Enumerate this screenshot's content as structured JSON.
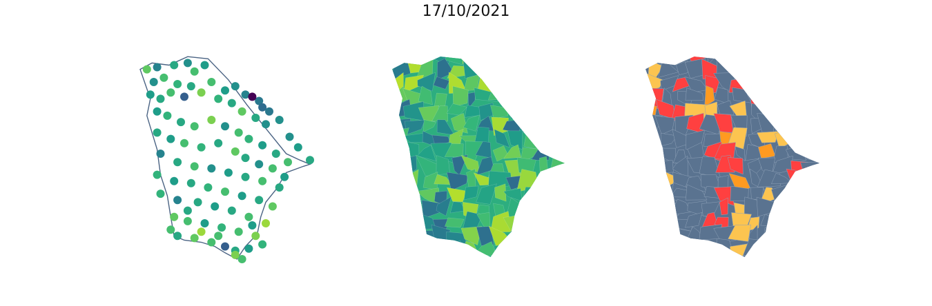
{
  "figure": {
    "title": "17/10/2021"
  },
  "chart_data": [
    {
      "type": "scatter",
      "panel": "stations-map",
      "title": "",
      "xlabel": "",
      "ylabel": "",
      "grid": false,
      "axes_visible": false,
      "colormap": "viridis",
      "outline_color": "#4a6383",
      "state_outline": [
        [
          0.0,
          0.9
        ],
        [
          0.07,
          0.93
        ],
        [
          0.17,
          0.92
        ],
        [
          0.28,
          0.96
        ],
        [
          0.4,
          0.95
        ],
        [
          0.52,
          0.85
        ],
        [
          0.63,
          0.73
        ],
        [
          0.74,
          0.62
        ],
        [
          0.86,
          0.5
        ],
        [
          0.94,
          0.47
        ],
        [
          1.0,
          0.45
        ],
        [
          0.96,
          0.44
        ],
        [
          0.86,
          0.41
        ],
        [
          0.8,
          0.33
        ],
        [
          0.74,
          0.27
        ],
        [
          0.71,
          0.2
        ],
        [
          0.69,
          0.12
        ],
        [
          0.62,
          0.06
        ],
        [
          0.57,
          0.0
        ],
        [
          0.5,
          0.03
        ],
        [
          0.44,
          0.06
        ],
        [
          0.36,
          0.08
        ],
        [
          0.26,
          0.09
        ],
        [
          0.2,
          0.11
        ],
        [
          0.18,
          0.2
        ],
        [
          0.16,
          0.3
        ],
        [
          0.12,
          0.4
        ],
        [
          0.1,
          0.52
        ],
        [
          0.07,
          0.6
        ],
        [
          0.04,
          0.68
        ],
        [
          0.06,
          0.76
        ],
        [
          0.03,
          0.83
        ],
        [
          0.0,
          0.9
        ]
      ],
      "points": [
        [
          0.04,
          0.9,
          0.75
        ],
        [
          0.1,
          0.91,
          0.45
        ],
        [
          0.2,
          0.92,
          0.6
        ],
        [
          0.28,
          0.93,
          0.5
        ],
        [
          0.32,
          0.89,
          0.7
        ],
        [
          0.38,
          0.92,
          0.55
        ],
        [
          0.08,
          0.84,
          0.5
        ],
        [
          0.14,
          0.86,
          0.7
        ],
        [
          0.22,
          0.83,
          0.65
        ],
        [
          0.3,
          0.82,
          0.6
        ],
        [
          0.42,
          0.84,
          0.7
        ],
        [
          0.5,
          0.8,
          0.55
        ],
        [
          0.56,
          0.82,
          0.5
        ],
        [
          0.62,
          0.78,
          0.45
        ],
        [
          0.7,
          0.75,
          0.4
        ],
        [
          0.66,
          0.77,
          0.0
        ],
        [
          0.72,
          0.72,
          0.35
        ],
        [
          0.76,
          0.7,
          0.4
        ],
        [
          0.82,
          0.66,
          0.5
        ],
        [
          0.88,
          0.58,
          0.5
        ],
        [
          0.93,
          0.53,
          0.55
        ],
        [
          1.0,
          0.47,
          0.6
        ],
        [
          0.06,
          0.78,
          0.55
        ],
        [
          0.12,
          0.76,
          0.6
        ],
        [
          0.18,
          0.79,
          0.7
        ],
        [
          0.26,
          0.77,
          0.3
        ],
        [
          0.36,
          0.79,
          0.8
        ],
        [
          0.46,
          0.76,
          0.65
        ],
        [
          0.54,
          0.74,
          0.6
        ],
        [
          0.6,
          0.7,
          0.75
        ],
        [
          0.68,
          0.67,
          0.6
        ],
        [
          0.74,
          0.64,
          0.5
        ],
        [
          0.1,
          0.7,
          0.55
        ],
        [
          0.16,
          0.68,
          0.65
        ],
        [
          0.24,
          0.65,
          0.6
        ],
        [
          0.32,
          0.63,
          0.7
        ],
        [
          0.42,
          0.66,
          0.8
        ],
        [
          0.5,
          0.63,
          0.5
        ],
        [
          0.58,
          0.6,
          0.7
        ],
        [
          0.64,
          0.57,
          0.65
        ],
        [
          0.72,
          0.54,
          0.55
        ],
        [
          0.8,
          0.5,
          0.6
        ],
        [
          0.87,
          0.46,
          0.7
        ],
        [
          0.1,
          0.6,
          0.6
        ],
        [
          0.18,
          0.57,
          0.55
        ],
        [
          0.26,
          0.55,
          0.7
        ],
        [
          0.36,
          0.53,
          0.65
        ],
        [
          0.46,
          0.55,
          0.6
        ],
        [
          0.56,
          0.51,
          0.75
        ],
        [
          0.62,
          0.48,
          0.6
        ],
        [
          0.7,
          0.45,
          0.5
        ],
        [
          0.78,
          0.43,
          0.7
        ],
        [
          0.85,
          0.39,
          0.55
        ],
        [
          0.12,
          0.5,
          0.45
        ],
        [
          0.22,
          0.46,
          0.6
        ],
        [
          0.32,
          0.44,
          0.7
        ],
        [
          0.42,
          0.43,
          0.5
        ],
        [
          0.52,
          0.41,
          0.55
        ],
        [
          0.62,
          0.39,
          0.6
        ],
        [
          0.72,
          0.37,
          0.7
        ],
        [
          0.82,
          0.34,
          0.6
        ],
        [
          0.1,
          0.4,
          0.65
        ],
        [
          0.2,
          0.37,
          0.55
        ],
        [
          0.3,
          0.36,
          0.6
        ],
        [
          0.4,
          0.34,
          0.65
        ],
        [
          0.5,
          0.32,
          0.7
        ],
        [
          0.6,
          0.3,
          0.55
        ],
        [
          0.7,
          0.28,
          0.6
        ],
        [
          0.78,
          0.25,
          0.75
        ],
        [
          0.12,
          0.31,
          0.65
        ],
        [
          0.22,
          0.28,
          0.45
        ],
        [
          0.34,
          0.27,
          0.6
        ],
        [
          0.44,
          0.25,
          0.55
        ],
        [
          0.54,
          0.23,
          0.6
        ],
        [
          0.64,
          0.2,
          0.7
        ],
        [
          0.74,
          0.17,
          0.85
        ],
        [
          0.2,
          0.2,
          0.75
        ],
        [
          0.28,
          0.18,
          0.7
        ],
        [
          0.38,
          0.17,
          0.55
        ],
        [
          0.48,
          0.15,
          0.65
        ],
        [
          0.58,
          0.13,
          0.7
        ],
        [
          0.68,
          0.11,
          0.8
        ],
        [
          0.22,
          0.11,
          0.6
        ],
        [
          0.32,
          0.1,
          0.75
        ],
        [
          0.42,
          0.08,
          0.7
        ],
        [
          0.5,
          0.06,
          0.3
        ],
        [
          0.56,
          0.04,
          0.6
        ],
        [
          0.64,
          0.05,
          0.55
        ],
        [
          0.72,
          0.07,
          0.65
        ],
        [
          0.6,
          0.0,
          0.7
        ],
        [
          0.56,
          0.02,
          0.8
        ],
        [
          0.36,
          0.13,
          0.85
        ],
        [
          0.46,
          0.11,
          0.7
        ],
        [
          0.66,
          0.16,
          0.55
        ],
        [
          0.28,
          0.23,
          0.6
        ],
        [
          0.18,
          0.14,
          0.7
        ]
      ]
    },
    {
      "type": "heatmap",
      "panel": "municipality-map-continuous",
      "title": "",
      "xlabel": "",
      "ylabel": "",
      "grid": false,
      "axes_visible": false,
      "colormap": "viridis",
      "region_shape": "ceara-state",
      "region_count": 184
    },
    {
      "type": "heatmap",
      "panel": "municipality-map-categorical",
      "title": "",
      "xlabel": "",
      "ylabel": "",
      "grid": false,
      "axes_visible": false,
      "region_shape": "ceara-state",
      "region_count": 184,
      "categories": [
        {
          "color": "#5a7390",
          "share": 0.7
        },
        {
          "color": "#ff4040",
          "share": 0.2
        },
        {
          "color": "#fcc450",
          "share": 0.07
        },
        {
          "color": "#ff9a20",
          "share": 0.03
        }
      ],
      "boundary_color": "#8fa2b8"
    }
  ]
}
